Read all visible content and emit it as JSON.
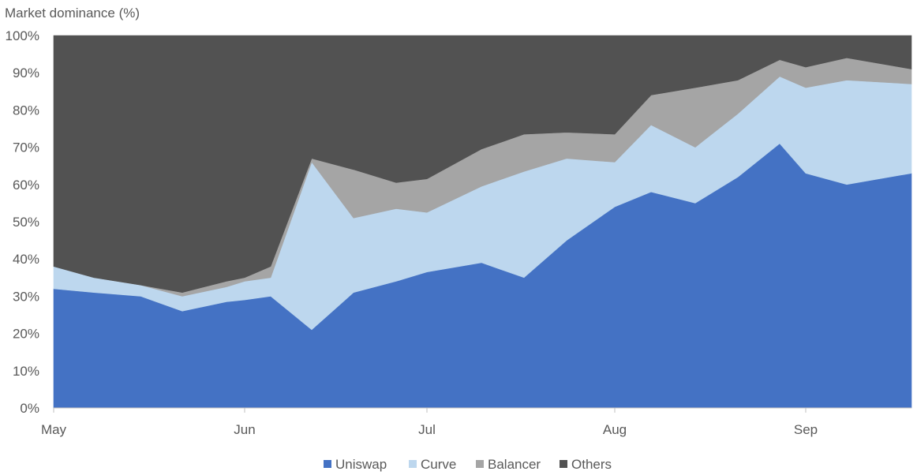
{
  "chart_data": {
    "type": "area",
    "stacked": "percent",
    "ylabel": "Market dominance (%)",
    "ylim": [
      0,
      100
    ],
    "y_ticks": [
      "0%",
      "10%",
      "20%",
      "30%",
      "40%",
      "50%",
      "60%",
      "70%",
      "80%",
      "90%",
      "100%"
    ],
    "x_tick_labels": [
      "May",
      "Jun",
      "Jul",
      "Aug",
      "Sep"
    ],
    "x": [
      "May 1",
      "May 8",
      "May 15",
      "May 22",
      "May 29",
      "Jun 1",
      "Jun 5",
      "Jun 12",
      "Jun 19",
      "Jun 26",
      "Jul 3",
      "Jul 10",
      "Jul 17",
      "Jul 24",
      "Jul 31",
      "Aug 7",
      "Aug 14",
      "Aug 21",
      "Aug 28",
      "Sep 4",
      "Sep 11",
      "Sep 17"
    ],
    "grid": false,
    "legend_position": "bottom",
    "series": [
      {
        "name": "Uniswap",
        "color": "#4472C4",
        "values": [
          32,
          31,
          30,
          26,
          28.5,
          29,
          30,
          21,
          31,
          34,
          36.5,
          39,
          35,
          45,
          54,
          58,
          55,
          62,
          71,
          63,
          60,
          63
        ]
      },
      {
        "name": "Curve",
        "color": "#BDD7EE",
        "values": [
          6,
          4,
          3,
          4,
          4,
          5,
          5,
          45,
          20,
          19.5,
          16,
          20.5,
          28.5,
          22,
          12,
          18,
          15,
          17,
          18,
          23,
          28,
          24
        ]
      },
      {
        "name": "Balancer",
        "color": "#A5A5A5",
        "values": [
          0,
          0,
          0,
          1,
          1.5,
          1,
          3,
          1,
          13,
          7,
          9,
          10,
          10,
          7,
          7.5,
          8,
          16,
          9,
          4.5,
          5.5,
          6,
          4
        ]
      },
      {
        "name": "Others",
        "color": "#525252",
        "values": [
          62,
          65,
          67,
          69,
          66,
          65,
          62,
          33,
          36,
          39.5,
          38.5,
          30.5,
          26.5,
          26,
          26.5,
          16,
          14,
          12,
          6.5,
          8.5,
          6,
          9
        ]
      }
    ]
  }
}
